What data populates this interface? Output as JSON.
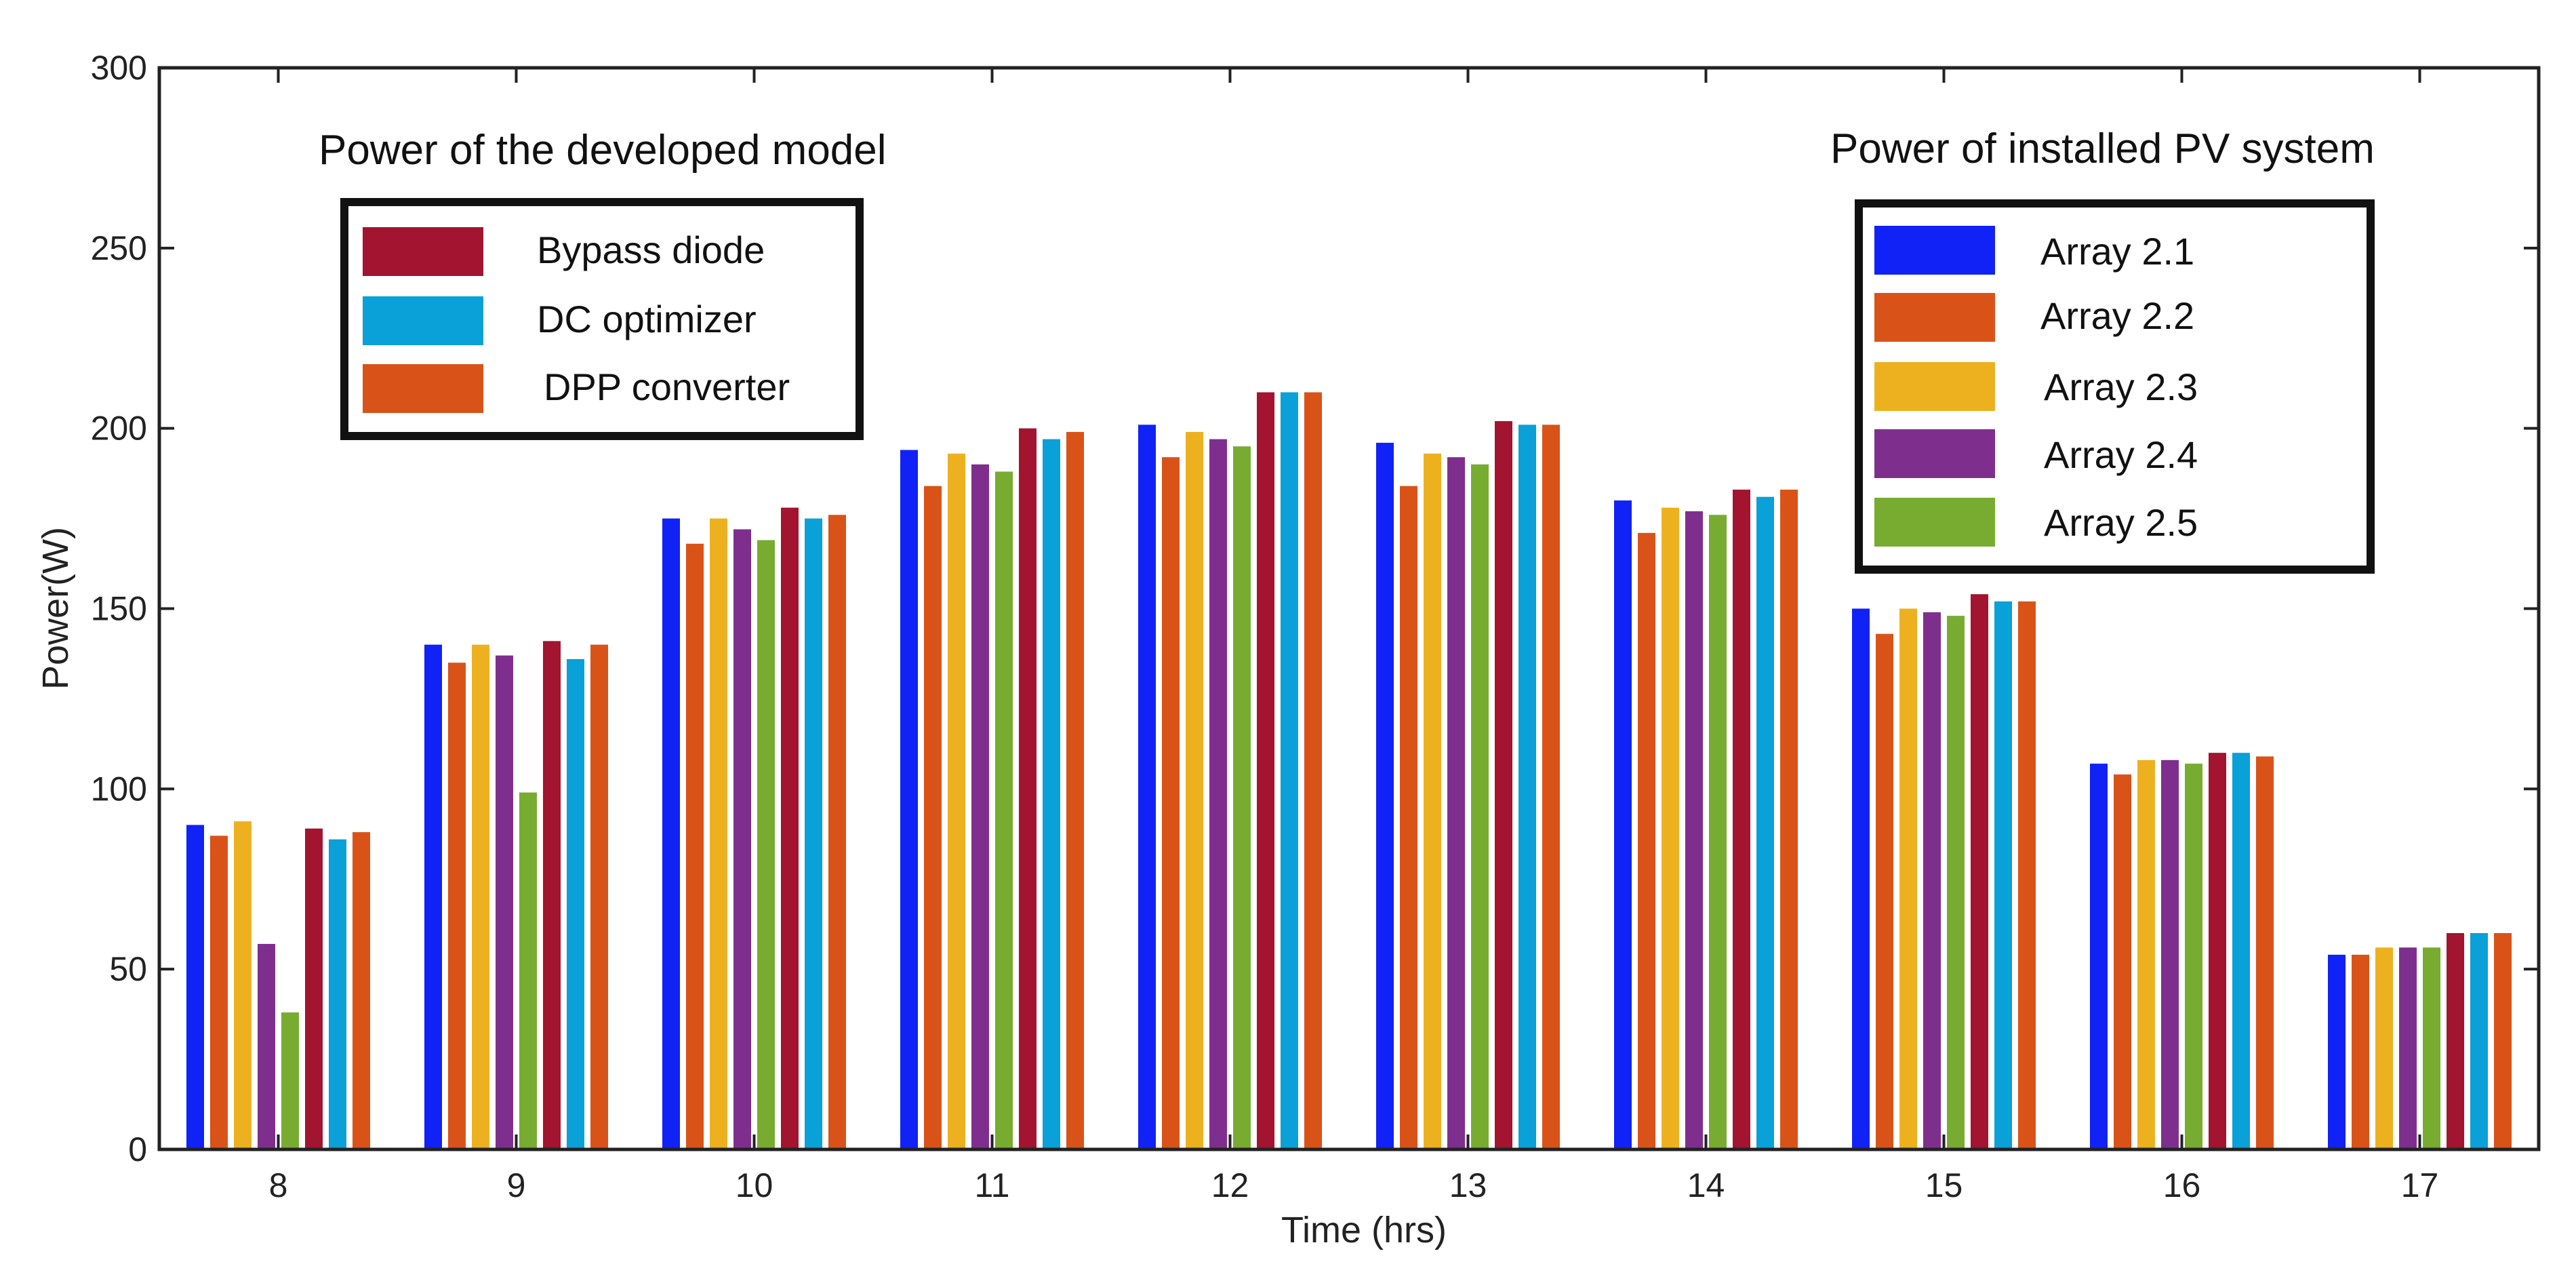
{
  "chart_data": {
    "type": "bar",
    "xlabel": "Time (hrs)",
    "ylabel": "Power(W)",
    "ylim": [
      0,
      300
    ],
    "yticks": [
      0,
      50,
      100,
      150,
      200,
      250,
      300
    ],
    "categories": [
      "8",
      "9",
      "10",
      "11",
      "12",
      "13",
      "14",
      "15",
      "16",
      "17"
    ],
    "series": [
      {
        "name": "Array 2.1",
        "color": "#1022f5",
        "values": [
          90,
          140,
          175,
          194,
          201,
          196,
          180,
          150,
          107,
          54
        ]
      },
      {
        "name": "Array 2.2",
        "color": "#d95319",
        "values": [
          87,
          135,
          168,
          184,
          192,
          184,
          171,
          143,
          104,
          54
        ]
      },
      {
        "name": "Array 2.3",
        "color": "#edb120",
        "values": [
          91,
          140,
          175,
          193,
          199,
          193,
          178,
          150,
          108,
          56
        ]
      },
      {
        "name": "Array 2.4",
        "color": "#7e2f8e",
        "values": [
          57,
          137,
          172,
          190,
          197,
          192,
          177,
          149,
          108,
          56
        ]
      },
      {
        "name": "Array 2.5",
        "color": "#77ac30",
        "values": [
          38,
          99,
          169,
          188,
          195,
          190,
          176,
          148,
          107,
          56
        ]
      },
      {
        "name": "Bypass diode",
        "color": "#a2142f",
        "values": [
          89,
          141,
          178,
          200,
          210,
          202,
          183,
          154,
          110,
          60
        ]
      },
      {
        "name": "DC optimizer",
        "color": "#0aa0d8",
        "values": [
          86,
          136,
          175,
          197,
          210,
          201,
          181,
          152,
          110,
          60
        ]
      },
      {
        "name": "DPP converter",
        "color": "#d95319",
        "values": [
          88,
          140,
          176,
          199,
          210,
          201,
          183,
          152,
          109,
          60
        ]
      }
    ],
    "legends": [
      {
        "title": "Power of the developed model",
        "entries": [
          "Bypass diode",
          "DC optimizer",
          "DPP converter"
        ],
        "position": "top-left"
      },
      {
        "title": "Power of installed PV system",
        "entries": [
          "Array 2.1",
          "Array 2.2",
          "Array 2.3",
          "Array 2.4",
          "Array 2.5"
        ],
        "position": "top-right"
      }
    ]
  }
}
